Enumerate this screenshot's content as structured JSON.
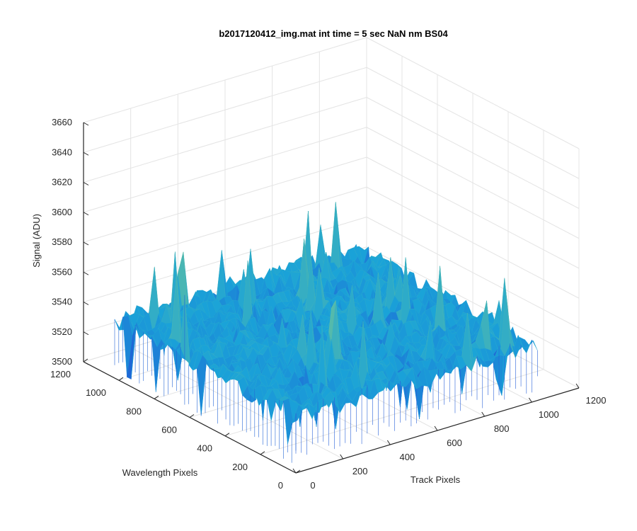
{
  "chart_data": {
    "type": "surface",
    "title": "b2017120412_img.mat int time = 5 sec  NaN nm BS04",
    "xlabel": "Track Pixels",
    "ylabel": "Wavelength Pixels",
    "zlabel": "Signal (ADU)",
    "xlim": [
      0,
      1200
    ],
    "ylim": [
      0,
      1200
    ],
    "zlim": [
      3500,
      3660
    ],
    "x_ticks": [
      "0",
      "200",
      "400",
      "600",
      "800",
      "1000",
      "1200"
    ],
    "y_ticks": [
      "0",
      "200",
      "400",
      "600",
      "800",
      "1000",
      "1200"
    ],
    "z_ticks": [
      "3500",
      "3520",
      "3540",
      "3560",
      "3580",
      "3600",
      "3620",
      "3640",
      "3660"
    ],
    "surface_extent": {
      "x": [
        0,
        1024
      ],
      "y": [
        0,
        1024
      ]
    },
    "signal_mean": 3538,
    "signal_noise_range": [
      3505,
      3615
    ],
    "grid": true,
    "colormap": "parula",
    "colors": {
      "low": "#1f5fd6",
      "mid": "#1aa3d8",
      "high": "#63c0a0"
    }
  }
}
